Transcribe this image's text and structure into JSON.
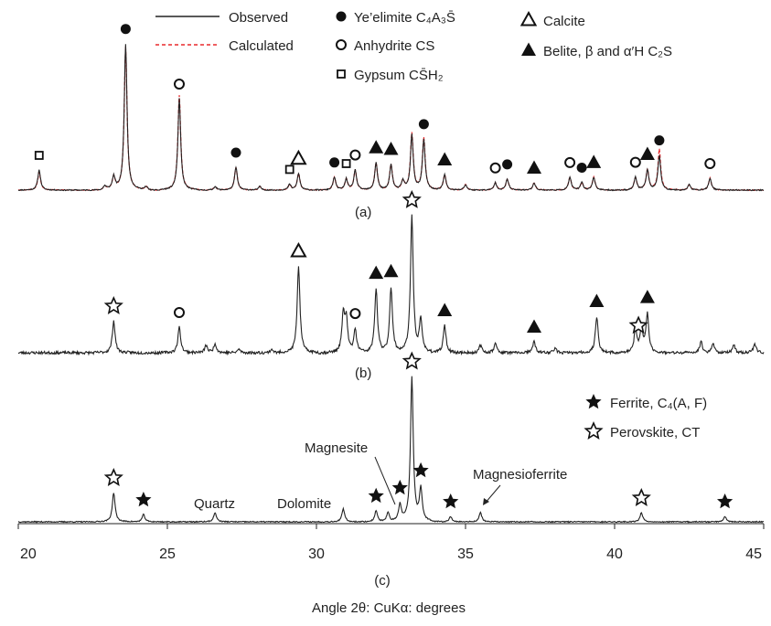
{
  "chart_data": {
    "type": "line",
    "xlabel": "Angle 2θ: CuKα: degrees",
    "xlim": [
      20,
      45
    ],
    "x_ticks": [
      "20",
      "25",
      "30",
      "35",
      "40",
      "45"
    ],
    "legend": {
      "observed": "Observed",
      "calculated": "Calculated",
      "observed_color": "#222222",
      "calculated_color": "#e8282b"
    },
    "phase_legend": [
      {
        "marker": "filled-circle",
        "name": "Ye’elimite",
        "formula": "C₄A₃S̄"
      },
      {
        "marker": "open-circle",
        "name": "Anhydrite",
        "formula": "CS"
      },
      {
        "marker": "open-square",
        "name": "Gypsum",
        "formula": "CS̄H₂"
      },
      {
        "marker": "open-triangle",
        "name": "Calcite",
        "formula": ""
      },
      {
        "marker": "filled-triangle",
        "name": "Belite,",
        "formula": "β and α′H C₂S"
      },
      {
        "marker": "filled-star",
        "name": "Ferrite,",
        "formula": "C₄(A, F)"
      },
      {
        "marker": "open-star",
        "name": "Perovskite,",
        "formula": "CT"
      }
    ],
    "panels": [
      {
        "label": "(a)",
        "series": [
          {
            "name": "Observed",
            "peaks": [
              [
                20.7,
                22
              ],
              [
                22.9,
                5
              ],
              [
                23.2,
                14
              ],
              [
                23.6,
                160
              ],
              [
                24.3,
                4
              ],
              [
                25.4,
                100
              ],
              [
                26.6,
                4
              ],
              [
                27.3,
                25
              ],
              [
                28.1,
                4
              ],
              [
                29.1,
                6
              ],
              [
                29.4,
                18
              ],
              [
                30.6,
                14
              ],
              [
                31.0,
                12
              ],
              [
                31.3,
                22
              ],
              [
                32.0,
                30
              ],
              [
                32.5,
                28
              ],
              [
                32.9,
                10
              ],
              [
                33.2,
                60
              ],
              [
                33.6,
                55
              ],
              [
                34.3,
                17
              ],
              [
                35.0,
                6
              ],
              [
                36.0,
                8
              ],
              [
                36.4,
                12
              ],
              [
                37.3,
                8
              ],
              [
                38.5,
                14
              ],
              [
                38.9,
                8
              ],
              [
                39.3,
                14
              ],
              [
                40.7,
                14
              ],
              [
                41.1,
                22
              ],
              [
                41.5,
                38
              ],
              [
                42.5,
                6
              ],
              [
                43.2,
                13
              ]
            ]
          },
          {
            "name": "Calculated",
            "peaks": [
              [
                20.7,
                20
              ],
              [
                22.9,
                5
              ],
              [
                23.2,
                14
              ],
              [
                23.6,
                157
              ],
              [
                24.3,
                4
              ],
              [
                25.4,
                104
              ],
              [
                26.6,
                4
              ],
              [
                27.3,
                25
              ],
              [
                28.1,
                4
              ],
              [
                29.1,
                6
              ],
              [
                29.4,
                18
              ],
              [
                30.6,
                14
              ],
              [
                31.0,
                12
              ],
              [
                31.3,
                22
              ],
              [
                32.0,
                30
              ],
              [
                32.5,
                28
              ],
              [
                32.9,
                10
              ],
              [
                33.2,
                62
              ],
              [
                33.6,
                57
              ],
              [
                34.3,
                17
              ],
              [
                35.0,
                6
              ],
              [
                36.0,
                8
              ],
              [
                36.4,
                12
              ],
              [
                37.3,
                8
              ],
              [
                38.5,
                14
              ],
              [
                38.9,
                8
              ],
              [
                39.3,
                14
              ],
              [
                40.7,
                14
              ],
              [
                41.1,
                22
              ],
              [
                41.5,
                45
              ],
              [
                42.5,
                6
              ],
              [
                43.2,
                13
              ]
            ]
          }
        ],
        "markers": [
          {
            "x": 23.6,
            "type": "filled-circle"
          },
          {
            "x": 25.4,
            "type": "open-circle"
          },
          {
            "x": 20.7,
            "type": "open-square"
          },
          {
            "x": 27.3,
            "type": "filled-circle"
          },
          {
            "x": 29.1,
            "type": "open-square"
          },
          {
            "x": 29.4,
            "type": "open-triangle"
          },
          {
            "x": 30.6,
            "type": "filled-circle"
          },
          {
            "x": 31.0,
            "type": "open-square"
          },
          {
            "x": 31.3,
            "type": "open-circle"
          },
          {
            "x": 32.0,
            "type": "filled-triangle"
          },
          {
            "x": 32.5,
            "type": "filled-triangle"
          },
          {
            "x": 33.6,
            "type": "filled-circle"
          },
          {
            "x": 34.3,
            "type": "filled-triangle"
          },
          {
            "x": 36.0,
            "type": "open-circle"
          },
          {
            "x": 36.4,
            "type": "filled-circle"
          },
          {
            "x": 37.3,
            "type": "filled-triangle"
          },
          {
            "x": 38.5,
            "type": "open-circle"
          },
          {
            "x": 38.9,
            "type": "filled-circle"
          },
          {
            "x": 39.3,
            "type": "filled-triangle"
          },
          {
            "x": 40.7,
            "type": "open-circle"
          },
          {
            "x": 41.1,
            "type": "filled-triangle"
          },
          {
            "x": 41.5,
            "type": "filled-circle"
          },
          {
            "x": 43.2,
            "type": "open-circle"
          }
        ]
      },
      {
        "label": "(b)",
        "series": [
          {
            "name": "Observed",
            "peaks": [
              [
                23.2,
                35
              ],
              [
                25.4,
                28
              ],
              [
                26.3,
                8
              ],
              [
                26.6,
                10
              ],
              [
                27.4,
                4
              ],
              [
                28.5,
                4
              ],
              [
                29.4,
                95
              ],
              [
                30.9,
                40
              ],
              [
                31.0,
                35
              ],
              [
                31.3,
                25
              ],
              [
                32.0,
                70
              ],
              [
                32.5,
                72
              ],
              [
                33.2,
                150
              ],
              [
                33.5,
                35
              ],
              [
                34.3,
                30
              ],
              [
                35.5,
                8
              ],
              [
                36.0,
                10
              ],
              [
                37.3,
                12
              ],
              [
                38.0,
                5
              ],
              [
                39.4,
                40
              ],
              [
                40.7,
                25
              ],
              [
                40.9,
                28
              ],
              [
                41.1,
                42
              ],
              [
                42.9,
                12
              ],
              [
                43.3,
                10
              ],
              [
                44.0,
                8
              ],
              [
                44.7,
                10
              ]
            ]
          }
        ],
        "markers": [
          {
            "x": 23.2,
            "type": "open-star"
          },
          {
            "x": 25.4,
            "type": "open-circle"
          },
          {
            "x": 29.4,
            "type": "open-triangle"
          },
          {
            "x": 31.3,
            "type": "open-circle"
          },
          {
            "x": 32.0,
            "type": "filled-triangle"
          },
          {
            "x": 32.5,
            "type": "filled-triangle"
          },
          {
            "x": 33.2,
            "type": "open-star"
          },
          {
            "x": 34.3,
            "type": "filled-triangle"
          },
          {
            "x": 37.3,
            "type": "filled-triangle"
          },
          {
            "x": 39.4,
            "type": "filled-triangle"
          },
          {
            "x": 40.8,
            "type": "open-star"
          },
          {
            "x": 41.1,
            "type": "filled-triangle"
          }
        ]
      },
      {
        "label": "(c)",
        "series": [
          {
            "name": "Observed",
            "peaks": [
              [
                23.2,
                32
              ],
              [
                24.2,
                8
              ],
              [
                26.6,
                10
              ],
              [
                30.9,
                14
              ],
              [
                32.0,
                12
              ],
              [
                32.4,
                10
              ],
              [
                32.8,
                18
              ],
              [
                33.2,
                158
              ],
              [
                33.5,
                35
              ],
              [
                34.5,
                6
              ],
              [
                35.5,
                10
              ],
              [
                40.9,
                10
              ],
              [
                43.7,
                6
              ]
            ]
          }
        ],
        "markers": [
          {
            "x": 23.2,
            "type": "open-star"
          },
          {
            "x": 24.2,
            "type": "filled-star"
          },
          {
            "x": 32.0,
            "type": "filled-star"
          },
          {
            "x": 32.8,
            "type": "filled-star"
          },
          {
            "x": 33.2,
            "type": "open-star"
          },
          {
            "x": 33.5,
            "type": "filled-star"
          },
          {
            "x": 34.5,
            "type": "filled-star"
          },
          {
            "x": 40.9,
            "type": "open-star"
          },
          {
            "x": 43.7,
            "type": "filled-star"
          }
        ],
        "annotations": {
          "quartz": "Quartz",
          "dolomite": "Dolomite",
          "magnesite": "Magnesite",
          "magnesioferrite": "Magnesioferrite"
        }
      }
    ]
  }
}
